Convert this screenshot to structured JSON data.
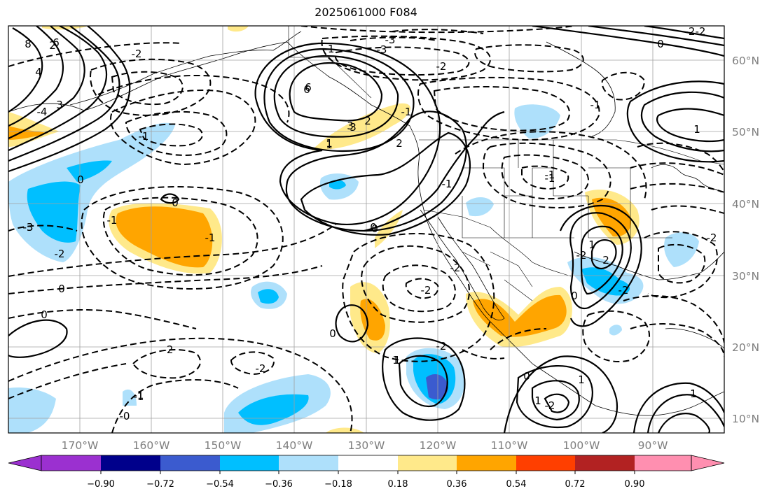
{
  "title": "2025061000 F084",
  "lat_labels": [
    "60°N",
    "50°N",
    "40°N",
    "30°N",
    "20°N",
    "10°N"
  ],
  "lon_labels": [
    "170°W",
    "160°W",
    "150°W",
    "140°W",
    "130°W",
    "120°W",
    "110°W",
    "100°W",
    "90°W"
  ],
  "colorbar": {
    "ticks": [
      "−0.90",
      "−0.72",
      "−0.54",
      "−0.36",
      "−0.18",
      "0.18",
      "0.36",
      "0.54",
      "0.72",
      "0.90"
    ],
    "colors": [
      "#9b30d0",
      "#00008b",
      "#3b5bcf",
      "#00bfff",
      "#aee0fb",
      "#ffffff",
      "#ffe98a",
      "#ffa500",
      "#ff3f00",
      "#b22222",
      "#ff8fb0"
    ]
  },
  "contour_labels": [
    "2",
    "3",
    "4",
    "6",
    "8",
    "6",
    "2",
    "-3",
    "-2",
    "-2",
    "-3",
    "-1",
    "6",
    "-3",
    "-2",
    "-1",
    "-2",
    "-1",
    "-1",
    "-1",
    "0",
    "-4",
    "3",
    "2",
    "-2",
    "-2",
    "-2",
    "1",
    "-1",
    "-1",
    "-1",
    "-2",
    "-2",
    "1",
    "1",
    "-1",
    "-3",
    "0",
    "-1",
    "0",
    "-0",
    "-2",
    "-2",
    "-2",
    "0",
    "0",
    "0",
    "0",
    "0",
    "1",
    "1",
    "-2",
    "1",
    "3",
    "2",
    "1",
    "1",
    "-2",
    "-1",
    "0",
    "1",
    "0",
    "1"
  ],
  "colors": {
    "positive_contour": "#000000",
    "grid": "#a0a0a0",
    "coastline": "#000000"
  }
}
